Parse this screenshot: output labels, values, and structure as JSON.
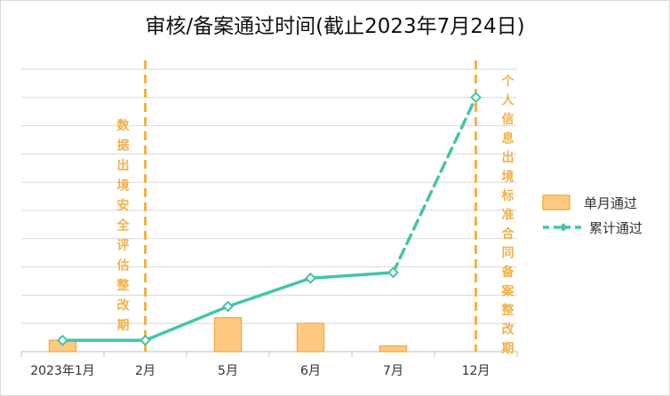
{
  "chart_data": {
    "type": "bar",
    "title": "审核/备案通过时间(截止2023年7月24日)",
    "categories": [
      "2023年1月",
      "2月",
      "5月",
      "6月",
      "7月",
      "12月"
    ],
    "ylim": [
      0,
      10
    ],
    "grid": true,
    "legend_position": "right",
    "series": [
      {
        "name": "单月通过",
        "type": "bar",
        "color": "#ffc982",
        "values": [
          0.4,
          0,
          1.2,
          1.0,
          0.2,
          0
        ]
      },
      {
        "name": "累计通过",
        "type": "line",
        "color": "#45c5a8",
        "values": [
          0.4,
          0.4,
          1.6,
          2.6,
          2.8,
          9.0
        ],
        "dashed_segment": [
          4,
          5
        ]
      }
    ],
    "annotations": [
      {
        "text": "数据出境安全评估整改期",
        "after_category": 1,
        "color": "#f4b147"
      },
      {
        "text": "个人信息出境标准合同备案整改期",
        "after_category": 5,
        "color": "#f4b147"
      }
    ]
  }
}
